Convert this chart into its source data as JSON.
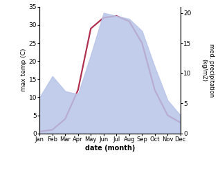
{
  "months": [
    "Jan",
    "Feb",
    "Mar",
    "Apr",
    "May",
    "Jun",
    "Jul",
    "Aug",
    "Sep",
    "Oct",
    "Nov",
    "Dec"
  ],
  "temperature": [
    0.5,
    1.0,
    4.0,
    12.0,
    29.0,
    32.0,
    32.5,
    31.0,
    25.0,
    12.0,
    5.0,
    3.0
  ],
  "precipitation": [
    6.0,
    9.5,
    7.0,
    6.5,
    13.0,
    20.0,
    19.5,
    19.0,
    17.0,
    11.0,
    5.5,
    3.0
  ],
  "temp_color": "#b03050",
  "precip_fill_color": "#b8c4e8",
  "temp_ylim": [
    0,
    35
  ],
  "precip_ylim": [
    0,
    21
  ],
  "temp_yticks": [
    0,
    5,
    10,
    15,
    20,
    25,
    30,
    35
  ],
  "precip_yticks": [
    0,
    5,
    10,
    15,
    20
  ],
  "xlabel": "date (month)",
  "ylabel_left": "max temp (C)",
  "ylabel_right": "med. precipitation\n(kg/m2)",
  "background_color": "#ffffff"
}
